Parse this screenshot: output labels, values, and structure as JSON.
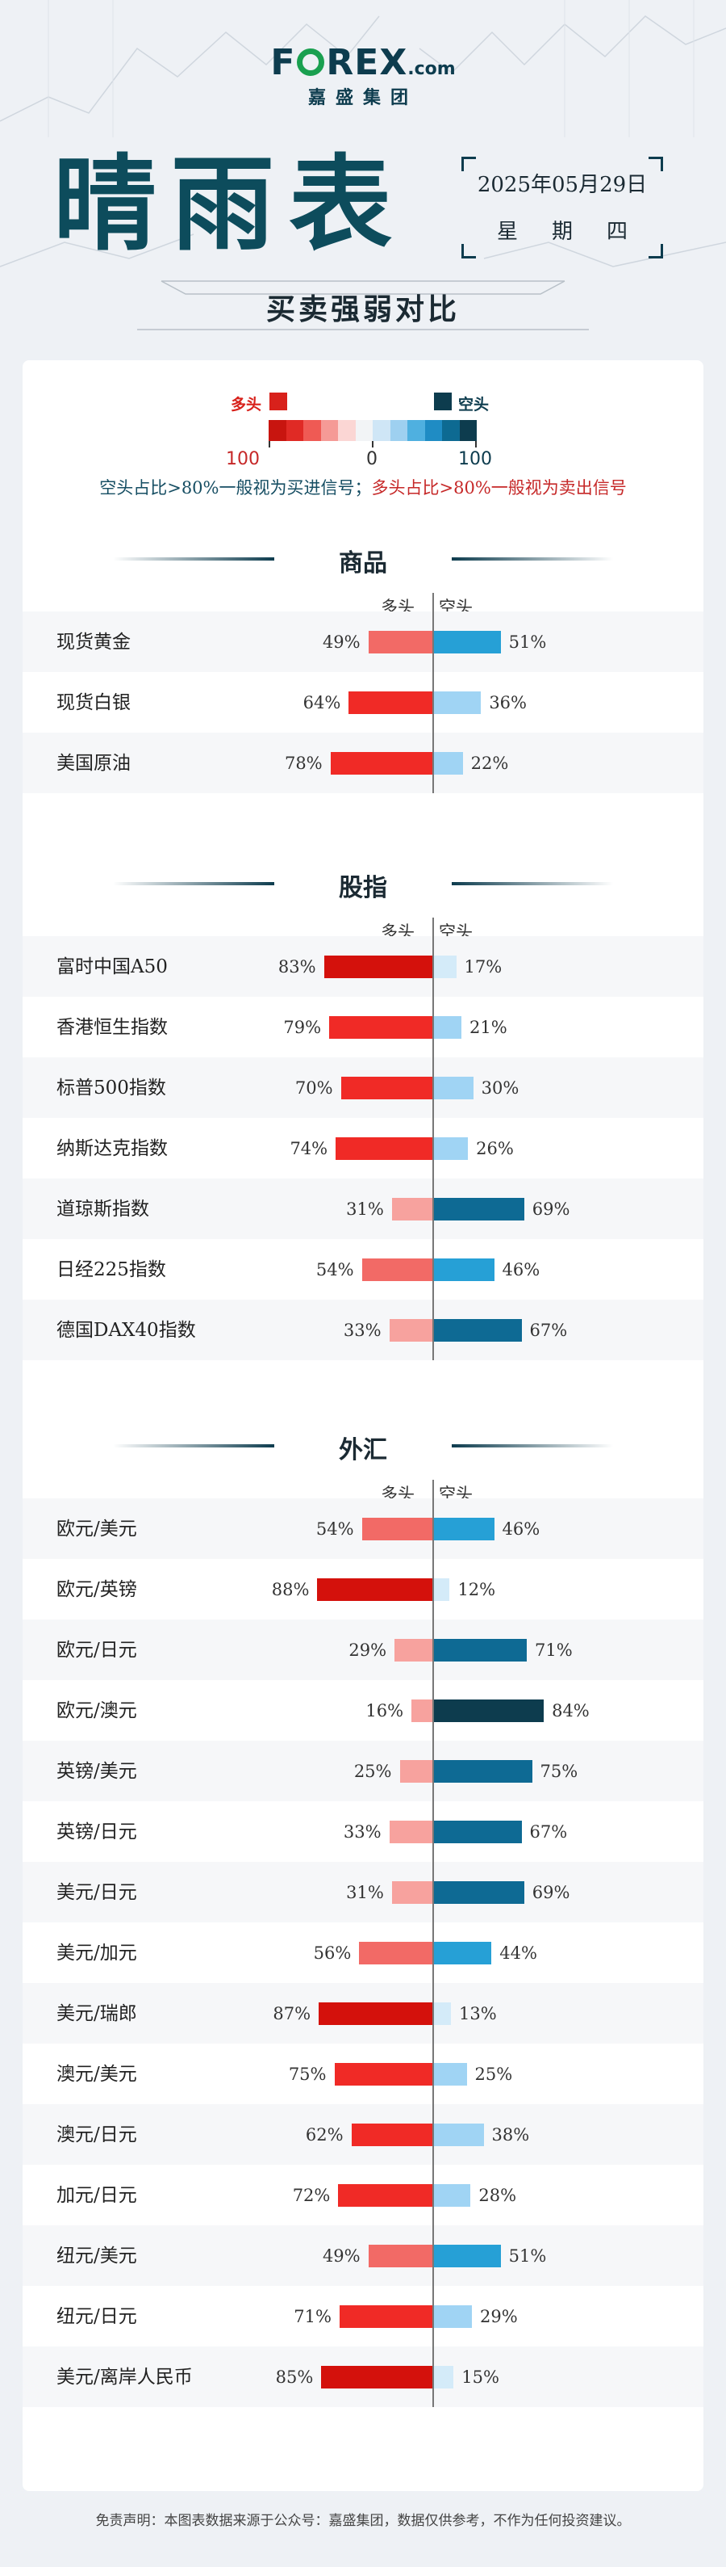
{
  "brand": {
    "logo_pre": "F",
    "logo_post": "REX",
    "logo_suffix": ".com",
    "sub": "嘉盛集团"
  },
  "title": "晴雨表",
  "date": "2025年05月29日",
  "weekday": "星期四",
  "subtitle": "买卖强弱对比",
  "legend": {
    "long_label": "多头",
    "short_label": "空头",
    "left_value": "100",
    "mid_value": "0",
    "right_value": "100",
    "long_color": "#d8211b",
    "short_color": "#0d3c4e",
    "gradient": [
      "#c8150f",
      "#e02a25",
      "#ef5a54",
      "#f59a96",
      "#fbd6d4",
      "#f2f4f6",
      "#cfe6f6",
      "#9ed0f0",
      "#4fb0e0",
      "#1f8cc4",
      "#0d6a92",
      "#0d3c4e"
    ]
  },
  "note_short": "空头占比>80%一般视为买进信号；",
  "note_long": "多头占比>80%一般视为卖出信号",
  "col_long": "多头",
  "col_short": "空头",
  "chart_data": {
    "type": "bar",
    "sections": [
      {
        "title": "商品",
        "items": [
          {
            "name": "现货黄金",
            "long": 49,
            "short": 51,
            "long_label": "49%",
            "short_label": "51%"
          },
          {
            "name": "现货白银",
            "long": 64,
            "short": 36,
            "long_label": "64%",
            "short_label": "36%"
          },
          {
            "name": "美国原油",
            "long": 78,
            "short": 22,
            "long_label": "78%",
            "short_label": "22%"
          }
        ]
      },
      {
        "title": "股指",
        "items": [
          {
            "name": "富时中国A50",
            "long": 83,
            "short": 17,
            "long_label": "83%",
            "short_label": "17%"
          },
          {
            "name": "香港恒生指数",
            "long": 79,
            "short": 21,
            "long_label": "79%",
            "short_label": "21%"
          },
          {
            "name": "标普500指数",
            "long": 70,
            "short": 30,
            "long_label": "70%",
            "short_label": "30%"
          },
          {
            "name": "纳斯达克指数",
            "long": 74,
            "short": 26,
            "long_label": "74%",
            "short_label": "26%"
          },
          {
            "name": "道琼斯指数",
            "long": 31,
            "short": 69,
            "long_label": "31%",
            "short_label": "69%"
          },
          {
            "name": "日经225指数",
            "long": 54,
            "short": 46,
            "long_label": "54%",
            "short_label": "46%"
          },
          {
            "name": "德国DAX40指数",
            "long": 33,
            "short": 67,
            "long_label": "33%",
            "short_label": "67%"
          }
        ]
      },
      {
        "title": "外汇",
        "items": [
          {
            "name": "欧元/美元",
            "long": 54,
            "short": 46,
            "long_label": "54%",
            "short_label": "46%"
          },
          {
            "name": "欧元/英镑",
            "long": 88,
            "short": 12,
            "long_label": "88%",
            "short_label": "12%"
          },
          {
            "name": "欧元/日元",
            "long": 29,
            "short": 71,
            "long_label": "29%",
            "short_label": "71%"
          },
          {
            "name": "欧元/澳元",
            "long": 16,
            "short": 84,
            "long_label": "16%",
            "short_label": "84%"
          },
          {
            "name": "英镑/美元",
            "long": 25,
            "short": 75,
            "long_label": "25%",
            "short_label": "75%"
          },
          {
            "name": "英镑/日元",
            "long": 33,
            "short": 67,
            "long_label": "33%",
            "short_label": "67%"
          },
          {
            "name": "美元/日元",
            "long": 31,
            "short": 69,
            "long_label": "31%",
            "short_label": "69%"
          },
          {
            "name": "美元/加元",
            "long": 56,
            "short": 44,
            "long_label": "56%",
            "short_label": "44%"
          },
          {
            "name": "美元/瑞郎",
            "long": 87,
            "short": 13,
            "long_label": "87%",
            "short_label": "13%"
          },
          {
            "name": "澳元/美元",
            "long": 75,
            "short": 25,
            "long_label": "75%",
            "short_label": "25%"
          },
          {
            "name": "澳元/日元",
            "long": 62,
            "short": 38,
            "long_label": "62%",
            "short_label": "38%"
          },
          {
            "name": "加元/日元",
            "long": 72,
            "short": 28,
            "long_label": "72%",
            "short_label": "28%"
          },
          {
            "name": "纽元/美元",
            "long": 49,
            "short": 51,
            "long_label": "49%",
            "short_label": "51%"
          },
          {
            "name": "纽元/日元",
            "long": 71,
            "short": 29,
            "long_label": "71%",
            "short_label": "29%"
          },
          {
            "name": "美元/离岸人民币",
            "long": 85,
            "short": 15,
            "long_label": "85%",
            "short_label": "15%"
          }
        ]
      }
    ]
  },
  "footer": "免责声明：本图表数据来源于公众号：嘉盛集团，数据仅供参考，不作为任何投资建议。"
}
